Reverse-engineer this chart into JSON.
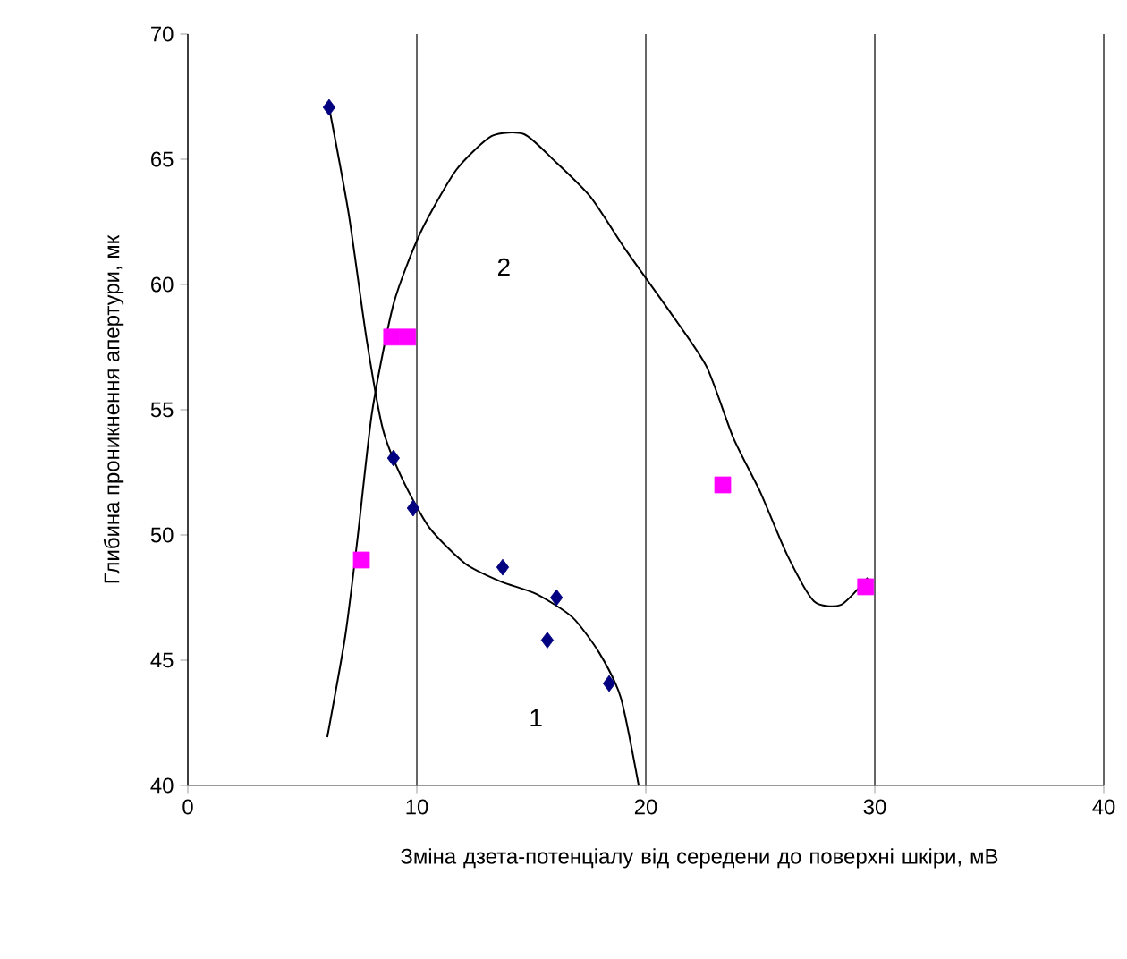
{
  "chart_data": {
    "type": "line",
    "xlabel": "Зміна дзета-потенціалу від середени до поверхні шкіри, мВ",
    "ylabel": "Глибина проникнення апертури, мк",
    "xlim": [
      0,
      40
    ],
    "xticks": [
      0,
      10,
      20,
      30,
      40
    ],
    "ylim": [
      40,
      70
    ],
    "yticks": [
      40,
      45,
      50,
      55,
      60,
      65,
      70
    ],
    "grid": "x",
    "series": [
      {
        "type": "scatter",
        "marker": "diamond",
        "color": "#000080",
        "x": [
          6.17,
          8.98,
          9.84,
          13.75,
          16.1,
          15.7,
          18.4
        ],
        "values": [
          67.07,
          53.07,
          51.07,
          48.71,
          47.5,
          45.8,
          44.07
        ]
      },
      {
        "marker": "none",
        "line_style": "solid",
        "color": "#000000",
        "x": [
          6.17,
          7.03,
          7.81,
          8.52,
          9.38,
          10.55,
          12.11,
          13.67,
          15.23,
          16.8,
          17.97,
          18.91,
          19.69
        ],
        "values": [
          67.07,
          62.79,
          57.79,
          54.21,
          52.21,
          50.29,
          48.86,
          48.14,
          47.64,
          46.71,
          45.29,
          43.5,
          40.0
        ]
      },
      {
        "type": "scatter",
        "marker": "square",
        "color": "#ff00ff",
        "x": [
          8.9,
          9.6,
          7.58,
          23.36,
          29.6
        ],
        "values": [
          57.9,
          57.9,
          49.0,
          52.0,
          47.93
        ]
      },
      {
        "marker": "none",
        "line_style": "solid",
        "color": "#000000",
        "x": [
          6.09,
          6.88,
          7.42,
          8.05,
          8.98,
          10.16,
          11.72,
          13.28,
          14.69,
          16.02,
          17.58,
          19.14,
          21.09,
          22.66,
          23.83,
          25.0,
          26.17,
          27.34,
          28.52,
          29.69
        ],
        "values": [
          41.93,
          46.0,
          49.93,
          54.93,
          59.21,
          62.07,
          64.57,
          65.93,
          66.0,
          64.93,
          63.5,
          61.36,
          58.86,
          56.71,
          53.86,
          51.71,
          49.21,
          47.36,
          47.21,
          48.29
        ]
      }
    ],
    "annotations": [
      "1",
      "2"
    ]
  }
}
